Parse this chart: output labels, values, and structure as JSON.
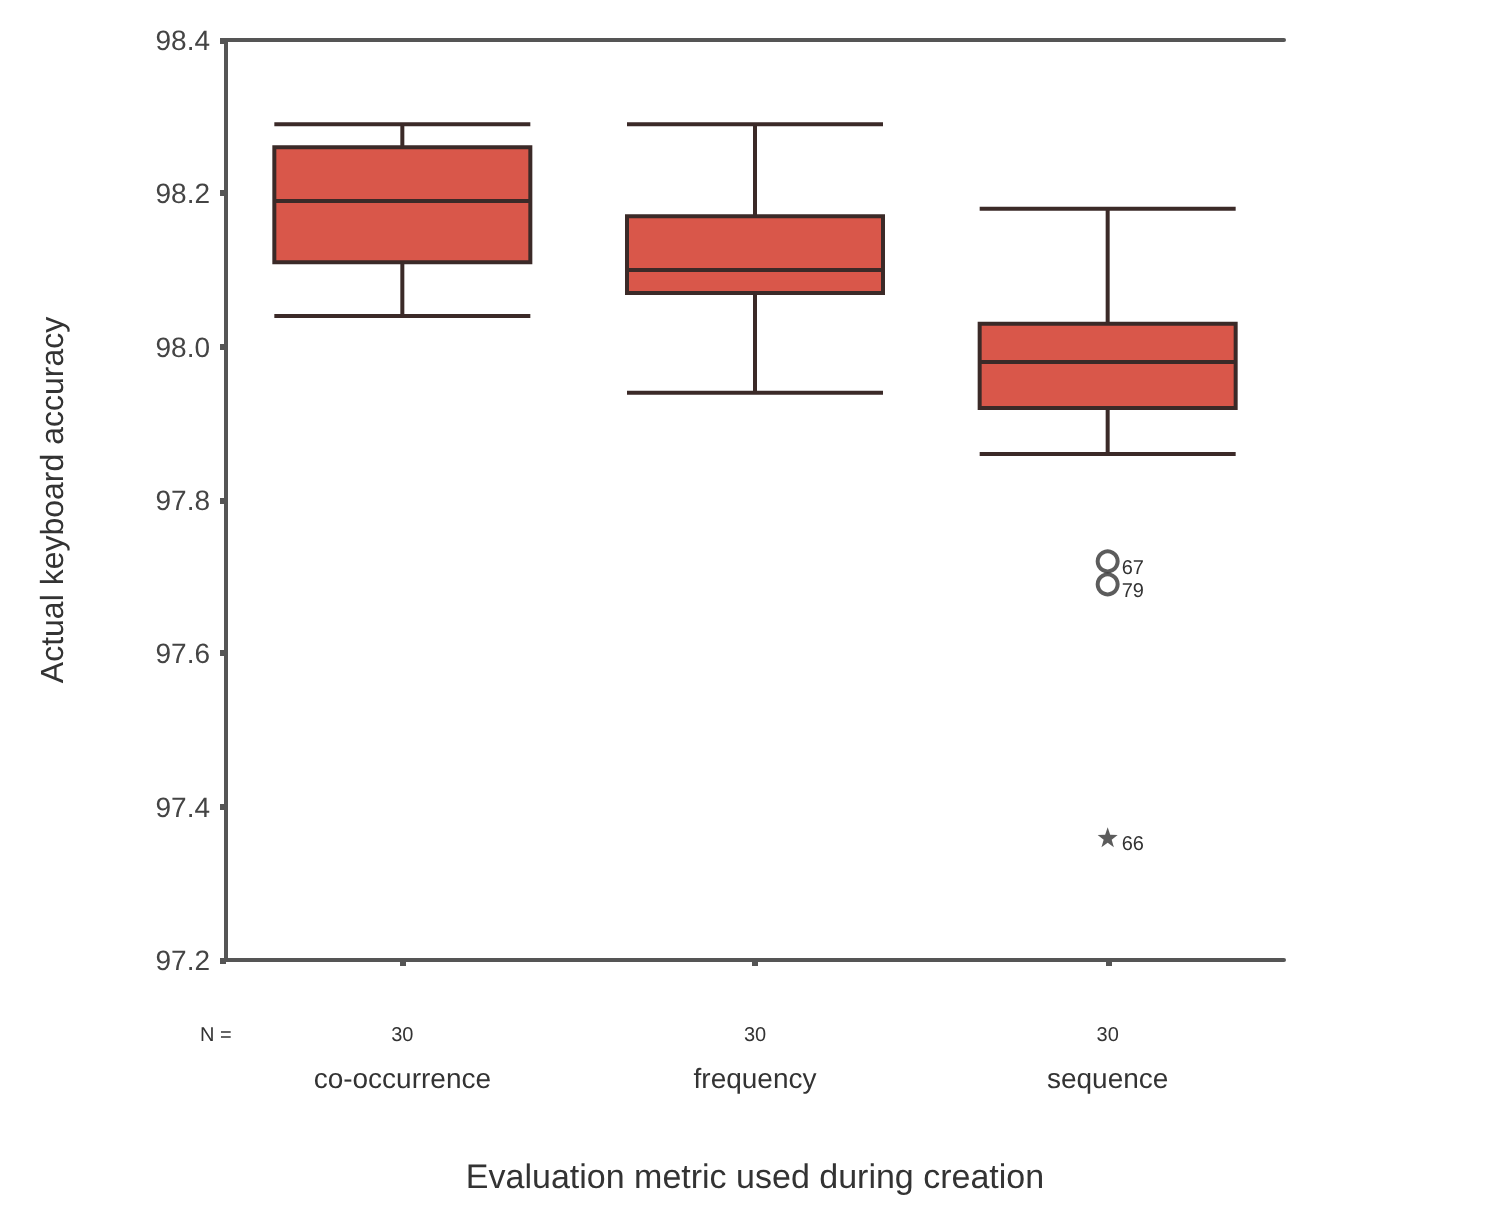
{
  "chart_data": {
    "type": "box",
    "xlabel": "Evaluation metric used during creation",
    "ylabel": "Actual keyboard accuracy",
    "categories": [
      "co-occurrence",
      "frequency",
      "sequence"
    ],
    "series": [
      {
        "color": "#d9574a",
        "boxes": [
          {
            "low": 98.04,
            "q1": 98.11,
            "median": 98.19,
            "q3": 98.26,
            "high": 98.29
          },
          {
            "low": 97.94,
            "q1": 98.07,
            "median": 98.1,
            "q3": 98.17,
            "high": 98.29
          },
          {
            "low": 97.86,
            "q1": 97.92,
            "median": 97.98,
            "q3": 98.03,
            "high": 98.18,
            "outliers": [
              97.72,
              97.69
            ]
          }
        ]
      },
      {
        "type": "scatter",
        "color": "#333333",
        "marker": "star",
        "x": [
          "sequence"
        ],
        "values": [
          97.36
        ]
      }
    ],
    "ylim": [
      97.2,
      98.4
    ],
    "yticks": [
      97.2,
      97.4,
      97.6,
      97.8,
      {
        "value": 98,
        "label": "98.0"
      },
      98.2,
      98.4
    ],
    "annotations": [
      "N =",
      "30",
      "30",
      "30",
      "67",
      "79",
      "66"
    ]
  }
}
